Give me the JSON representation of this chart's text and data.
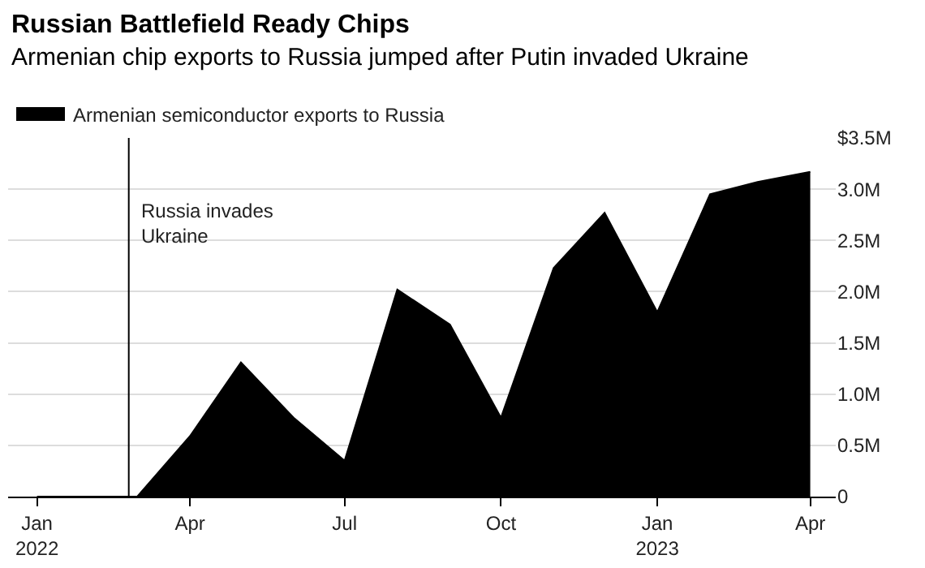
{
  "chart_data": {
    "type": "area",
    "title": "Russian Battlefield Ready Chips",
    "subtitle": "Armenian chip exports to Russia jumped after Putin invaded Ukraine",
    "x": [
      "2022-01",
      "2022-02",
      "2022-03",
      "2022-04",
      "2022-05",
      "2022-06",
      "2022-07",
      "2022-08",
      "2022-09",
      "2022-10",
      "2022-11",
      "2022-12",
      "2023-01",
      "2023-02",
      "2023-03",
      "2023-04"
    ],
    "series": [
      {
        "name": "Armenian semiconductor exports to Russia",
        "color": "#000000",
        "values": [
          0,
          0,
          0,
          0.59,
          1.31,
          0.77,
          0.35,
          2.02,
          1.68,
          0.77,
          2.23,
          2.77,
          1.8,
          2.95,
          3.07,
          3.17
        ]
      }
    ],
    "xlim": [
      "2021-12-15",
      "2023-04-16"
    ],
    "xticks": [
      {
        "value": "2022-01",
        "label": "Jan\n2022"
      },
      {
        "value": "2022-04",
        "label": "Apr"
      },
      {
        "value": "2022-07",
        "label": "Jul"
      },
      {
        "value": "2022-10",
        "label": "Oct"
      },
      {
        "value": "2023-01",
        "label": "Jan\n2023"
      },
      {
        "value": "2023-04",
        "label": "Apr"
      }
    ],
    "ylim": [
      0,
      3.5
    ],
    "yticks": [
      {
        "value": 0,
        "label": "0"
      },
      {
        "value": 0.5,
        "label": "0.5M"
      },
      {
        "value": 1,
        "label": "1.0M"
      },
      {
        "value": 1.5,
        "label": "1.5M"
      },
      {
        "value": 2,
        "label": "2.0M"
      },
      {
        "value": 2.5,
        "label": "2.5M"
      },
      {
        "value": 3,
        "label": "3.0M"
      },
      {
        "value": 3.5,
        "label": "$3.5M"
      }
    ],
    "ref_lines": [
      {
        "axis": "x",
        "value": "2022-02-24",
        "label": "Russia invades\nUkraine",
        "color": "#000000"
      }
    ],
    "grid": "y",
    "legend": "top left"
  }
}
